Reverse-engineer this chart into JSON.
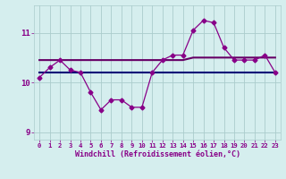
{
  "x": [
    0,
    1,
    2,
    3,
    4,
    5,
    6,
    7,
    8,
    9,
    10,
    11,
    12,
    13,
    14,
    15,
    16,
    17,
    18,
    19,
    20,
    21,
    22,
    23
  ],
  "y_main": [
    10.1,
    10.3,
    10.45,
    10.25,
    10.2,
    9.8,
    9.45,
    9.65,
    9.65,
    9.5,
    9.5,
    10.2,
    10.45,
    10.55,
    10.55,
    11.05,
    11.25,
    11.2,
    10.7,
    10.45,
    10.45,
    10.45,
    10.55,
    10.2
  ],
  "y_trend1": [
    10.45,
    10.45,
    10.45,
    10.45,
    10.45,
    10.45,
    10.45,
    10.45,
    10.45,
    10.45,
    10.45,
    10.45,
    10.45,
    10.45,
    10.45,
    10.5,
    10.5,
    10.5,
    10.5,
    10.5,
    10.5,
    10.5,
    10.5,
    10.5
  ],
  "y_trend2": [
    10.2,
    10.2,
    10.2,
    10.2,
    10.2,
    10.2,
    10.2,
    10.2,
    10.2,
    10.2,
    10.2,
    10.2,
    10.2,
    10.2,
    10.2,
    10.2,
    10.2,
    10.2,
    10.2,
    10.2,
    10.2,
    10.2,
    10.2,
    10.2
  ],
  "line_color": "#880088",
  "trend_color1": "#660066",
  "trend_color2": "#000077",
  "bg_color": "#d5eeee",
  "grid_color": "#aacccc",
  "xlabel": "Windchill (Refroidissement éolien,°C)",
  "ylim": [
    8.85,
    11.55
  ],
  "xlim": [
    -0.5,
    23.5
  ],
  "yticks": [
    9,
    10,
    11
  ],
  "xticks": [
    0,
    1,
    2,
    3,
    4,
    5,
    6,
    7,
    8,
    9,
    10,
    11,
    12,
    13,
    14,
    15,
    16,
    17,
    18,
    19,
    20,
    21,
    22,
    23
  ]
}
